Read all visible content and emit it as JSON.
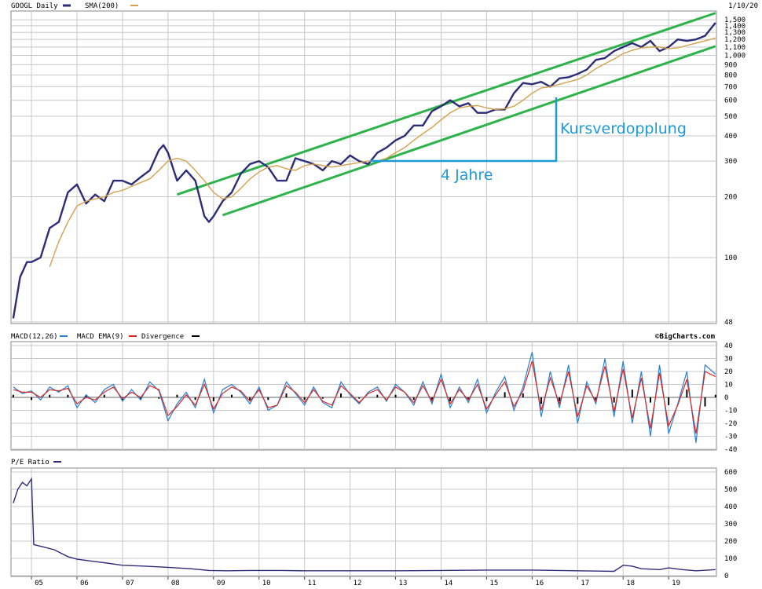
{
  "header": {
    "ticker_label": "GOOGL Daily",
    "sma_label": "SMA(200)",
    "date": "1/10/20"
  },
  "macd_header": {
    "macd_label": "MACD(12,26)",
    "ema_label": "MACD EMA(9)",
    "divergence_label": "Divergence",
    "source": "©BigCharts.com"
  },
  "pe_header": {
    "label": "P/E Ratio"
  },
  "annotations": {
    "doubling": "Kursverdopplung",
    "years": "4 Jahre"
  },
  "colors": {
    "price": "#2c2c78",
    "sma": "#d4a04c",
    "channel": "#2db34a",
    "annotation": "#1e9ad8",
    "macd": "#2a7fd4",
    "ema": "#d42a2a",
    "divergence": "#000000",
    "grid": "#c8c8c8"
  },
  "x_axis": {
    "ticks": [
      "05",
      "06",
      "07",
      "08",
      "09",
      "10",
      "11",
      "12",
      "13",
      "14",
      "15",
      "16",
      "17",
      "18",
      "19"
    ]
  },
  "chart_data": [
    {
      "type": "line",
      "title": "GOOGL Daily",
      "scale": "log",
      "ylim": [
        48,
        1600
      ],
      "y_ticks": [
        48,
        100,
        200,
        300,
        400,
        500,
        600,
        700,
        800,
        900,
        1000,
        1100,
        1200,
        1300,
        1400,
        1500
      ],
      "y_tick_labels": [
        "48",
        "100",
        "200",
        "300",
        "400",
        "500",
        "600",
        "700",
        "800",
        "900",
        "1,000",
        "1,100",
        "1,200",
        "1,300",
        "1,400",
        "1,500"
      ],
      "x_ticks": [
        "05",
        "06",
        "07",
        "08",
        "09",
        "10",
        "11",
        "12",
        "13",
        "14",
        "15",
        "16",
        "17",
        "18",
        "19"
      ],
      "series": [
        {
          "name": "GOOGL Daily",
          "x": [
            2004.6,
            2004.75,
            2004.9,
            2005.0,
            2005.2,
            2005.4,
            2005.6,
            2005.8,
            2006.0,
            2006.2,
            2006.4,
            2006.6,
            2006.8,
            2007.0,
            2007.2,
            2007.4,
            2007.6,
            2007.8,
            2007.9,
            2008.0,
            2008.2,
            2008.4,
            2008.6,
            2008.8,
            2008.9,
            2009.0,
            2009.2,
            2009.4,
            2009.6,
            2009.8,
            2010.0,
            2010.2,
            2010.4,
            2010.6,
            2010.8,
            2011.0,
            2011.2,
            2011.4,
            2011.6,
            2011.8,
            2012.0,
            2012.2,
            2012.4,
            2012.6,
            2012.8,
            2013.0,
            2013.2,
            2013.4,
            2013.6,
            2013.8,
            2014.0,
            2014.2,
            2014.4,
            2014.6,
            2014.8,
            2015.0,
            2015.2,
            2015.4,
            2015.6,
            2015.8,
            2016.0,
            2016.2,
            2016.4,
            2016.6,
            2016.8,
            2017.0,
            2017.2,
            2017.4,
            2017.6,
            2017.8,
            2018.0,
            2018.2,
            2018.4,
            2018.6,
            2018.8,
            2019.0,
            2019.2,
            2019.4,
            2019.6,
            2019.8,
            2020.03
          ],
          "values": [
            50,
            80,
            95,
            95,
            100,
            140,
            150,
            210,
            230,
            185,
            205,
            190,
            240,
            240,
            230,
            250,
            270,
            340,
            360,
            330,
            240,
            270,
            240,
            160,
            150,
            160,
            190,
            210,
            260,
            290,
            300,
            280,
            240,
            240,
            310,
            300,
            290,
            270,
            300,
            290,
            320,
            300,
            290,
            330,
            350,
            380,
            400,
            450,
            450,
            530,
            560,
            600,
            560,
            580,
            520,
            520,
            540,
            540,
            650,
            730,
            720,
            740,
            700,
            770,
            780,
            810,
            850,
            950,
            970,
            1050,
            1100,
            1150,
            1100,
            1180,
            1050,
            1100,
            1200,
            1180,
            1200,
            1250,
            1450
          ]
        },
        {
          "name": "SMA(200)",
          "x": [
            2005.4,
            2005.6,
            2005.8,
            2006.0,
            2006.2,
            2006.4,
            2006.6,
            2006.8,
            2007.0,
            2007.2,
            2007.4,
            2007.6,
            2007.8,
            2008.0,
            2008.2,
            2008.4,
            2008.6,
            2008.8,
            2009.0,
            2009.2,
            2009.4,
            2009.6,
            2009.8,
            2010.0,
            2010.2,
            2010.4,
            2010.6,
            2010.8,
            2011.0,
            2011.2,
            2011.4,
            2011.6,
            2011.8,
            2012.0,
            2012.2,
            2012.4,
            2012.6,
            2012.8,
            2013.0,
            2013.2,
            2013.4,
            2013.6,
            2013.8,
            2014.0,
            2014.2,
            2014.4,
            2014.6,
            2014.8,
            2015.0,
            2015.2,
            2015.4,
            2015.6,
            2015.8,
            2016.0,
            2016.2,
            2016.4,
            2016.6,
            2016.8,
            2017.0,
            2017.2,
            2017.4,
            2017.6,
            2017.8,
            2018.0,
            2018.2,
            2018.4,
            2018.6,
            2018.8,
            2019.0,
            2019.2,
            2019.4,
            2019.6,
            2019.8,
            2020.03
          ],
          "values": [
            90,
            120,
            150,
            180,
            190,
            195,
            200,
            210,
            215,
            225,
            235,
            245,
            270,
            300,
            310,
            300,
            270,
            240,
            210,
            195,
            200,
            220,
            245,
            265,
            280,
            285,
            275,
            270,
            285,
            290,
            285,
            280,
            285,
            290,
            295,
            300,
            300,
            310,
            330,
            350,
            380,
            410,
            440,
            480,
            520,
            550,
            560,
            565,
            550,
            540,
            545,
            560,
            600,
            650,
            690,
            700,
            720,
            740,
            760,
            800,
            860,
            910,
            960,
            1020,
            1060,
            1090,
            1100,
            1100,
            1080,
            1090,
            1120,
            1150,
            1180,
            1220
          ]
        }
      ],
      "channel_upper": {
        "x": [
          2008.2,
          2020.03
        ],
        "values": [
          205,
          1620
        ]
      },
      "channel_lower": {
        "x": [
          2009.2,
          2020.03
        ],
        "values": [
          162,
          1110
        ]
      }
    },
    {
      "type": "line",
      "title": "MACD(12,26)",
      "ylim": [
        -40,
        40
      ],
      "y_ticks": [
        -40,
        -30,
        -20,
        -10,
        0,
        10,
        20,
        30,
        40
      ],
      "x_ticks": [
        "05",
        "06",
        "07",
        "08",
        "09",
        "10",
        "11",
        "12",
        "13",
        "14",
        "15",
        "16",
        "17",
        "18",
        "19"
      ],
      "series": [
        {
          "name": "MACD(12,26)",
          "x": [
            2004.6,
            2004.8,
            2005.0,
            2005.2,
            2005.4,
            2005.6,
            2005.8,
            2006.0,
            2006.2,
            2006.4,
            2006.6,
            2006.8,
            2007.0,
            2007.2,
            2007.4,
            2007.6,
            2007.8,
            2008.0,
            2008.2,
            2008.4,
            2008.6,
            2008.8,
            2009.0,
            2009.2,
            2009.4,
            2009.6,
            2009.8,
            2010.0,
            2010.2,
            2010.4,
            2010.6,
            2010.8,
            2011.0,
            2011.2,
            2011.4,
            2011.6,
            2011.8,
            2012.0,
            2012.2,
            2012.4,
            2012.6,
            2012.8,
            2013.0,
            2013.2,
            2013.4,
            2013.6,
            2013.8,
            2014.0,
            2014.2,
            2014.4,
            2014.6,
            2014.8,
            2015.0,
            2015.2,
            2015.4,
            2015.6,
            2015.8,
            2016.0,
            2016.2,
            2016.4,
            2016.6,
            2016.8,
            2017.0,
            2017.2,
            2017.4,
            2017.6,
            2017.8,
            2018.0,
            2018.2,
            2018.4,
            2018.6,
            2018.8,
            2019.0,
            2019.2,
            2019.4,
            2019.6,
            2019.8,
            2020.03
          ],
          "values": [
            8,
            3,
            5,
            -2,
            8,
            4,
            9,
            -8,
            2,
            -4,
            6,
            10,
            -3,
            6,
            -2,
            12,
            5,
            -18,
            -5,
            4,
            -8,
            14,
            -12,
            6,
            10,
            4,
            -5,
            8,
            -10,
            -6,
            12,
            3,
            -6,
            8,
            -4,
            -8,
            12,
            2,
            -5,
            4,
            8,
            -3,
            10,
            4,
            -6,
            12,
            -5,
            18,
            -8,
            8,
            -4,
            14,
            -12,
            4,
            16,
            -10,
            8,
            35,
            -15,
            20,
            -8,
            25,
            -20,
            12,
            -5,
            30,
            -15,
            28,
            -20,
            20,
            -30,
            25,
            -28,
            -5,
            20,
            -35,
            25,
            18
          ]
        },
        {
          "name": "MACD EMA(9)",
          "x": [
            2004.6,
            2004.8,
            2005.0,
            2005.2,
            2005.4,
            2005.6,
            2005.8,
            2006.0,
            2006.2,
            2006.4,
            2006.6,
            2006.8,
            2007.0,
            2007.2,
            2007.4,
            2007.6,
            2007.8,
            2008.0,
            2008.2,
            2008.4,
            2008.6,
            2008.8,
            2009.0,
            2009.2,
            2009.4,
            2009.6,
            2009.8,
            2010.0,
            2010.2,
            2010.4,
            2010.6,
            2010.8,
            2011.0,
            2011.2,
            2011.4,
            2011.6,
            2011.8,
            2012.0,
            2012.2,
            2012.4,
            2012.6,
            2012.8,
            2013.0,
            2013.2,
            2013.4,
            2013.6,
            2013.8,
            2014.0,
            2014.2,
            2014.4,
            2014.6,
            2014.8,
            2015.0,
            2015.2,
            2015.4,
            2015.6,
            2015.8,
            2016.0,
            2016.2,
            2016.4,
            2016.6,
            2016.8,
            2017.0,
            2017.2,
            2017.4,
            2017.6,
            2017.8,
            2018.0,
            2018.2,
            2018.4,
            2018.6,
            2018.8,
            2019.0,
            2019.2,
            2019.4,
            2019.6,
            2019.8,
            2020.03
          ],
          "values": [
            6,
            4,
            4,
            0,
            6,
            5,
            7,
            -5,
            0,
            -2,
            4,
            8,
            -1,
            4,
            0,
            9,
            6,
            -14,
            -7,
            2,
            -6,
            10,
            -9,
            3,
            8,
            5,
            -3,
            6,
            -8,
            -6,
            9,
            4,
            -4,
            6,
            -3,
            -6,
            9,
            3,
            -4,
            3,
            6,
            -2,
            8,
            4,
            -4,
            9,
            -3,
            14,
            -5,
            6,
            -2,
            10,
            -9,
            2,
            12,
            -7,
            5,
            28,
            -10,
            15,
            -5,
            20,
            -15,
            9,
            -3,
            24,
            -11,
            22,
            -16,
            15,
            -24,
            19,
            -22,
            -6,
            14,
            -28,
            20,
            16
          ]
        }
      ],
      "divergence": {
        "x": [
          2004.6,
          2005.0,
          2005.4,
          2005.8,
          2006.2,
          2006.6,
          2007.0,
          2007.4,
          2007.8,
          2008.2,
          2008.6,
          2009.0,
          2009.4,
          2009.8,
          2010.2,
          2010.6,
          2011.0,
          2011.4,
          2011.8,
          2012.2,
          2012.6,
          2013.0,
          2013.4,
          2013.8,
          2014.2,
          2014.6,
          2015.0,
          2015.4,
          2015.8,
          2016.2,
          2016.6,
          2017.0,
          2017.4,
          2017.8,
          2018.2,
          2018.6,
          2019.0,
          2019.4,
          2019.8,
          2020.03
        ],
        "values": [
          2,
          -2,
          2,
          2,
          2,
          2,
          -2,
          -2,
          -1,
          2,
          -2,
          -3,
          2,
          -2,
          -2,
          3,
          -2,
          -1,
          3,
          -1,
          2,
          2,
          -2,
          -2,
          -3,
          -2,
          -3,
          4,
          3,
          -5,
          -3,
          -5,
          -2,
          -4,
          6,
          -4,
          -6,
          6,
          -7,
          2
        ]
      }
    },
    {
      "type": "line",
      "title": "P/E Ratio",
      "ylim": [
        0,
        600
      ],
      "y_ticks": [
        0,
        100,
        200,
        300,
        400,
        500,
        600
      ],
      "x_ticks": [
        "05",
        "06",
        "07",
        "08",
        "09",
        "10",
        "11",
        "12",
        "13",
        "14",
        "15",
        "16",
        "17",
        "18",
        "19"
      ],
      "series": [
        {
          "name": "P/E Ratio",
          "x": [
            2004.6,
            2004.7,
            2004.8,
            2004.9,
            2005.0,
            2005.05,
            2005.2,
            2005.5,
            2005.8,
            2006.0,
            2006.3,
            2006.6,
            2007.0,
            2007.5,
            2008.0,
            2008.5,
            2008.9,
            2009.3,
            2009.8,
            2010.5,
            2011.0,
            2012.0,
            2013.0,
            2014.0,
            2015.0,
            2016.0,
            2017.0,
            2017.8,
            2018.0,
            2018.2,
            2018.4,
            2018.8,
            2019.0,
            2019.3,
            2019.6,
            2020.03
          ],
          "values": [
            420,
            500,
            540,
            520,
            560,
            180,
            170,
            150,
            110,
            95,
            85,
            75,
            60,
            55,
            48,
            40,
            30,
            28,
            30,
            30,
            28,
            28,
            28,
            30,
            32,
            32,
            28,
            25,
            60,
            55,
            40,
            35,
            45,
            35,
            28,
            35
          ]
        }
      ]
    }
  ]
}
